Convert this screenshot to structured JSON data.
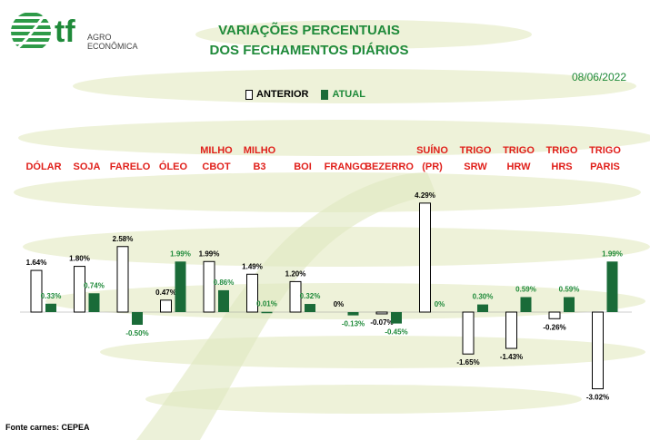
{
  "header": {
    "logo_text": "tf",
    "logo_sub1": "AGRO",
    "logo_sub2": "ECONÔMICA",
    "title_line1": "VARIAÇÕES PERCENTUAIS",
    "title_line2": "DOS FECHAMENTOS DIÁRIOS",
    "date": "08/06/2022"
  },
  "legend": {
    "anterior": "ANTERIOR",
    "atual": "ATUAL"
  },
  "footer": {
    "source": "Fonte carnes: CEPEA"
  },
  "colors": {
    "title": "#1f8a3a",
    "category": "#e0201b",
    "atual_bar": "#1a6b38",
    "anterior_bar": "#ffffff",
    "atual_label": "#1f8a3a",
    "background_stripes": "#eef2d9"
  },
  "chart_data": {
    "type": "bar",
    "categories": [
      [
        "DÓLAR"
      ],
      [
        "SOJA"
      ],
      [
        "FARELO"
      ],
      [
        "ÓLEO"
      ],
      [
        "MILHO",
        "CBOT"
      ],
      [
        "MILHO",
        "B3"
      ],
      [
        "BOI"
      ],
      [
        "FRANGO"
      ],
      [
        "BEZERRO"
      ],
      [
        "SUÍNO",
        "(PR)"
      ],
      [
        "TRIGO",
        "SRW"
      ],
      [
        "TRIGO",
        "HRW"
      ],
      [
        "TRIGO",
        "HRS"
      ],
      [
        "TRIGO",
        "PARIS"
      ]
    ],
    "series": [
      {
        "name": "ANTERIOR",
        "values": [
          1.64,
          1.8,
          2.58,
          0.47,
          1.99,
          1.49,
          1.2,
          0,
          -0.07,
          4.29,
          -1.65,
          -1.43,
          -0.26,
          -3.02
        ],
        "labels": [
          "1.64%",
          "1.80%",
          "2.58%",
          "0.47%",
          "1.99%",
          "1.49%",
          "1.20%",
          "0%",
          "-0.07%",
          "4.29%",
          "-1.65%",
          "-1.43%",
          "-0.26%",
          "-3.02%"
        ]
      },
      {
        "name": "ATUAL",
        "values": [
          0.33,
          0.74,
          -0.5,
          1.99,
          0.86,
          0.01,
          0.32,
          -0.13,
          -0.45,
          0,
          0.3,
          0.59,
          0.59,
          1.99
        ],
        "labels": [
          "0.33%",
          "0.74%",
          "-0.50%",
          "1.99%",
          "0.86%",
          "0.01%",
          "0.32%",
          "-0.13%",
          "-0.45%",
          "0%",
          "0.30%",
          "0.59%",
          "0.59%",
          "1.99%"
        ]
      }
    ],
    "ylim": [
      -3.5,
      4.5
    ],
    "legend_position": "top-center",
    "grid": false
  }
}
